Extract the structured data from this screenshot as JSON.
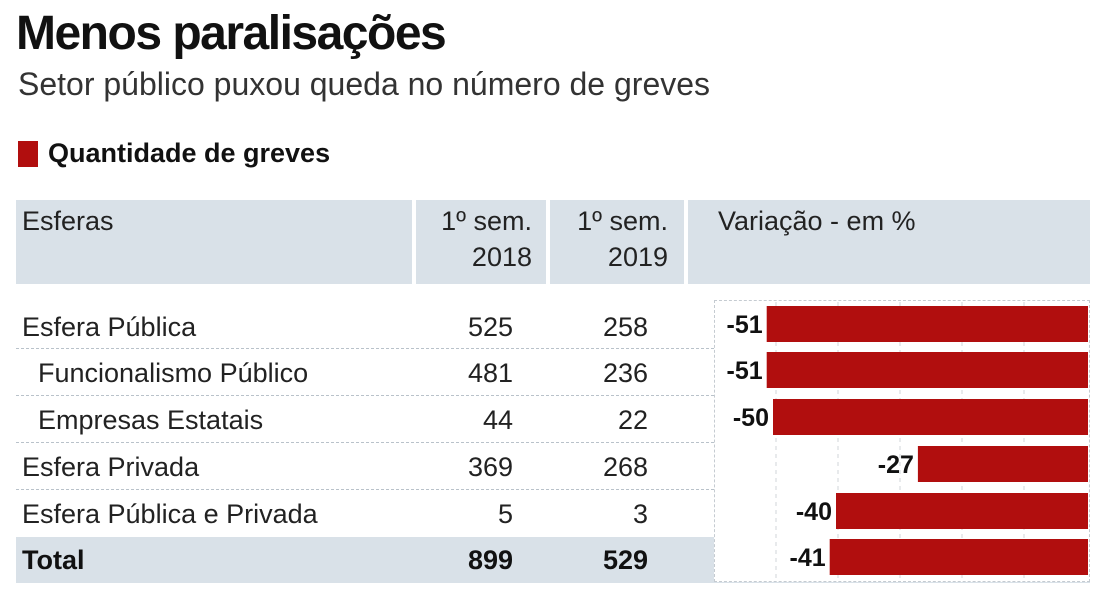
{
  "title": "Menos paralisações",
  "subtitle": "Setor público puxou queda no número de greves",
  "legend_label": "Quantidade de greves",
  "colors": {
    "bar": "#b10e0e",
    "header_bg": "#d9e1e8"
  },
  "table": {
    "headers": {
      "esferas": "Esferas",
      "col1_line1": "1º sem.",
      "col1_line2": "2018",
      "col2_line1": "1º sem.",
      "col2_line2": "2019",
      "variacao": "Variação - em %"
    },
    "rows": [
      {
        "label": "Esfera Pública",
        "v2018": "525",
        "v2019": "258",
        "indent": false
      },
      {
        "label": "Funcionalismo Público",
        "v2018": "481",
        "v2019": "236",
        "indent": true
      },
      {
        "label": "Empresas Estatais",
        "v2018": "44",
        "v2019": "22",
        "indent": true
      },
      {
        "label": "Esfera Privada",
        "v2018": "369",
        "v2019": "268",
        "indent": false
      },
      {
        "label": "Esfera Pública e Privada",
        "v2018": "5",
        "v2019": "3",
        "indent": false
      }
    ],
    "total": {
      "label": "Total",
      "v2018": "899",
      "v2019": "529"
    }
  },
  "chart_data": {
    "type": "bar",
    "orientation": "horizontal",
    "categories": [
      "Esfera Pública",
      "Funcionalismo Público",
      "Empresas Estatais",
      "Esfera Privada",
      "Esfera Pública e Privada",
      "Total"
    ],
    "values": [
      -51,
      -51,
      -50,
      -27,
      -40,
      -41
    ],
    "value_labels": [
      "-51",
      "-51",
      "-50",
      "-27",
      "-40",
      "-41"
    ],
    "xlim": [
      -60,
      0
    ],
    "title": "Variação - em %",
    "grid": true
  }
}
